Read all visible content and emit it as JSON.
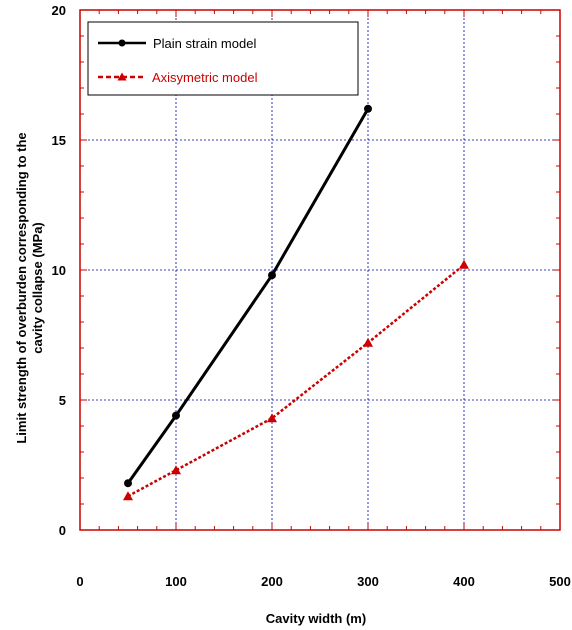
{
  "chart_data": {
    "type": "line",
    "title": "",
    "xlabel": "Cavity width (m)",
    "ylabel": "Limit strength of overburden corresponding to the cavity collapse (MPa)",
    "ylabel_lines": [
      "Limit strength of overburden corresponding to the",
      "cavity collapse (MPa)"
    ],
    "xlim": [
      0,
      500
    ],
    "ylim": [
      0,
      20
    ],
    "x_ticks": [
      0,
      100,
      200,
      300,
      400,
      500
    ],
    "y_ticks": [
      0,
      5,
      10,
      15,
      20
    ],
    "x_tick_labels": [
      "0",
      "100",
      "200",
      "300",
      "400",
      "500"
    ],
    "y_tick_labels": [
      "0",
      "5",
      "10",
      "15",
      "20"
    ],
    "grid": true,
    "legend_position": "top-left",
    "series": [
      {
        "name": "Plain strain model",
        "color": "#000000",
        "marker": "circle",
        "line_style": "solid",
        "x": [
          50,
          100,
          200,
          300
        ],
        "y": [
          1.8,
          4.4,
          9.8,
          16.2
        ]
      },
      {
        "name": "Axisymetric model",
        "color": "#cc0000",
        "marker": "triangle",
        "line_style": "dotted",
        "x": [
          50,
          100,
          200,
          300,
          400
        ],
        "y": [
          1.3,
          2.3,
          4.3,
          7.2,
          10.2
        ]
      }
    ]
  },
  "colors": {
    "frame": "#cc0000",
    "grid": "#0000aa",
    "text": "#000000"
  }
}
